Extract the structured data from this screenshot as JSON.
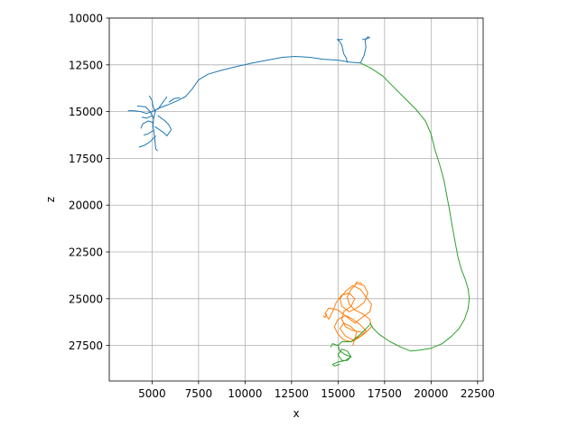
{
  "chart_data": {
    "type": "line",
    "xlabel": "x",
    "ylabel": "z",
    "xlim": [
      2700,
      22800
    ],
    "ylim": [
      29400,
      10000
    ],
    "y_inverted": true,
    "grid": true,
    "x_ticks": [
      "5000",
      "7500",
      "10000",
      "12500",
      "15000",
      "17500",
      "20000",
      "22500"
    ],
    "y_ticks": [
      "10000",
      "12500",
      "15000",
      "17500",
      "20000",
      "22500",
      "25000",
      "27500"
    ],
    "colors": {
      "blue": "#1f77b4",
      "orange": "#ff7f0e",
      "green": "#2ca02c"
    },
    "series": [
      {
        "color": "#1f77b4",
        "paths": [
          [
            [
              16200,
              12400
            ],
            [
              15600,
              12350
            ],
            [
              15000,
              12250
            ],
            [
              14200,
              12200
            ],
            [
              13500,
              12100
            ],
            [
              12700,
              12050
            ],
            [
              12000,
              12100
            ],
            [
              11200,
              12250
            ],
            [
              10400,
              12400
            ],
            [
              9500,
              12600
            ],
            [
              8700,
              12800
            ],
            [
              8000,
              13000
            ],
            [
              7500,
              13300
            ],
            [
              7150,
              13800
            ],
            [
              6800,
              14200
            ],
            [
              6300,
              14450
            ],
            [
              5800,
              14650
            ],
            [
              5400,
              14800
            ],
            [
              5000,
              15000
            ],
            [
              4700,
              15100
            ],
            [
              4400,
              15000
            ],
            [
              4000,
              14950
            ],
            [
              3700,
              14950
            ]
          ],
          [
            [
              15500,
              12380
            ],
            [
              15450,
              12150
            ],
            [
              15300,
              11900
            ],
            [
              15200,
              11450
            ],
            [
              15050,
              11200
            ],
            [
              14950,
              11150
            ],
            [
              15250,
              11150
            ]
          ],
          [
            [
              16200,
              12400
            ],
            [
              16400,
              12000
            ],
            [
              16500,
              11550
            ],
            [
              16450,
              11200
            ],
            [
              16600,
              11000
            ],
            [
              16700,
              11050
            ],
            [
              16300,
              11150
            ]
          ],
          [
            [
              5200,
              14900
            ],
            [
              5100,
              15300
            ],
            [
              5050,
              15700
            ],
            [
              5100,
              16100
            ],
            [
              5150,
              16500
            ],
            [
              5200,
              17000
            ],
            [
              5300,
              17100
            ]
          ],
          [
            [
              5100,
              15600
            ],
            [
              4800,
              15500
            ],
            [
              4500,
              15650
            ],
            [
              4400,
              15900
            ]
          ],
          [
            [
              5100,
              15400
            ],
            [
              4900,
              15000
            ],
            [
              4650,
              14750
            ],
            [
              4200,
              14700
            ]
          ],
          [
            [
              5150,
              15000
            ],
            [
              5050,
              14700
            ],
            [
              5000,
              14400
            ],
            [
              4850,
              14150
            ]
          ],
          [
            [
              5300,
              15200
            ],
            [
              5700,
              15500
            ],
            [
              5900,
              15700
            ],
            [
              6050,
              16000
            ]
          ],
          [
            [
              5200,
              16300
            ],
            [
              4900,
              16600
            ],
            [
              4600,
              16800
            ],
            [
              4300,
              16900
            ]
          ],
          [
            [
              5150,
              15800
            ],
            [
              5600,
              16100
            ],
            [
              5800,
              16300
            ],
            [
              6000,
              16000
            ]
          ],
          [
            [
              5100,
              16000
            ],
            [
              4750,
              16200
            ],
            [
              4550,
              16250
            ]
          ],
          [
            [
              5900,
              14500
            ],
            [
              6200,
              14300
            ],
            [
              6500,
              14250
            ]
          ],
          [
            [
              5300,
              14900
            ],
            [
              5550,
              14550
            ],
            [
              5800,
              14200
            ]
          ],
          [
            [
              5050,
              15200
            ],
            [
              4700,
              15350
            ],
            [
              4450,
              15300
            ]
          ]
        ]
      },
      {
        "color": "#ff7f0e",
        "paths": [
          [
            [
              16300,
              26800
            ],
            [
              15800,
              26700
            ],
            [
              15400,
              26500
            ],
            [
              15200,
              26100
            ],
            [
              15300,
              25700
            ],
            [
              15700,
              25400
            ],
            [
              15900,
              25000
            ],
            [
              15600,
              24700
            ],
            [
              15200,
              24800
            ],
            [
              14900,
              25200
            ],
            [
              14700,
              25700
            ],
            [
              14500,
              26100
            ],
            [
              14300,
              25800
            ],
            [
              14500,
              25500
            ],
            [
              15000,
              25600
            ],
            [
              15500,
              26000
            ],
            [
              15900,
              26300
            ],
            [
              16300,
              26000
            ],
            [
              16700,
              25700
            ],
            [
              16800,
              25300
            ],
            [
              16500,
              24900
            ],
            [
              16200,
              24500
            ],
            [
              15800,
              24300
            ],
            [
              15400,
              24600
            ],
            [
              15100,
              25000
            ],
            [
              15200,
              25400
            ],
            [
              15600,
              25700
            ],
            [
              16000,
              25500
            ],
            [
              16400,
              25200
            ],
            [
              16600,
              24700
            ],
            [
              16400,
              24300
            ],
            [
              16000,
              24200
            ],
            [
              15700,
              24500
            ],
            [
              15500,
              24900
            ],
            [
              15600,
              25300
            ],
            [
              15900,
              25600
            ],
            [
              16300,
              25800
            ],
            [
              16700,
              26100
            ],
            [
              16800,
              26500
            ],
            [
              16500,
              26800
            ],
            [
              16100,
              27100
            ],
            [
              15700,
              27300
            ],
            [
              15300,
              27200
            ],
            [
              15000,
              26900
            ],
            [
              14800,
              26500
            ],
            [
              15000,
              26100
            ],
            [
              15400,
              25900
            ],
            [
              15800,
              26100
            ],
            [
              16200,
              26400
            ],
            [
              16500,
              26700
            ],
            [
              16200,
              27000
            ],
            [
              15800,
              27200
            ],
            [
              15400,
              27000
            ],
            [
              15100,
              26600
            ],
            [
              15300,
              26300
            ],
            [
              15700,
              26500
            ],
            [
              16000,
              26800
            ],
            [
              15800,
              27500
            ]
          ],
          [
            [
              14400,
              25800
            ],
            [
              14300,
              26000
            ],
            [
              14200,
              25900
            ]
          ],
          [
            [
              16300,
              24200
            ],
            [
              16000,
              24100
            ],
            [
              15900,
              24300
            ]
          ]
        ]
      },
      {
        "color": "#2ca02c",
        "paths": [
          [
            [
              16200,
              12400
            ],
            [
              16800,
              12700
            ],
            [
              17400,
              13100
            ],
            [
              18000,
              13700
            ],
            [
              18600,
              14300
            ],
            [
              19200,
              14900
            ],
            [
              19700,
              15500
            ],
            [
              20000,
              16200
            ],
            [
              20200,
              17000
            ],
            [
              20450,
              17800
            ],
            [
              20700,
              18700
            ],
            [
              20850,
              19500
            ],
            [
              21000,
              20300
            ],
            [
              21150,
              21200
            ],
            [
              21300,
              22000
            ],
            [
              21450,
              22800
            ],
            [
              21650,
              23500
            ],
            [
              21850,
              24000
            ],
            [
              22000,
              24500
            ],
            [
              22050,
              25000
            ],
            [
              22000,
              25500
            ],
            [
              21800,
              26100
            ],
            [
              21500,
              26600
            ],
            [
              21100,
              27000
            ],
            [
              20600,
              27400
            ],
            [
              20000,
              27650
            ],
            [
              19400,
              27750
            ],
            [
              18900,
              27800
            ],
            [
              18400,
              27600
            ],
            [
              17800,
              27300
            ],
            [
              17200,
              26900
            ],
            [
              16900,
              26600
            ],
            [
              16700,
              26300
            ]
          ],
          [
            [
              16700,
              26400
            ],
            [
              16200,
              26900
            ],
            [
              15700,
              27300
            ],
            [
              15200,
              27300
            ],
            [
              15000,
              27500
            ],
            [
              15100,
              27800
            ],
            [
              15400,
              28000
            ],
            [
              15700,
              28100
            ],
            [
              15500,
              28300
            ],
            [
              15200,
              28300
            ],
            [
              15000,
              28000
            ],
            [
              15200,
              27700
            ],
            [
              15500,
              27800
            ],
            [
              15700,
              28100
            ],
            [
              15400,
              28300
            ],
            [
              14950,
              28400
            ],
            [
              14700,
              28500
            ],
            [
              14800,
              28600
            ],
            [
              15100,
              28500
            ]
          ],
          [
            [
              15000,
              27500
            ],
            [
              14700,
              27400
            ],
            [
              14600,
              27600
            ]
          ]
        ]
      }
    ]
  }
}
